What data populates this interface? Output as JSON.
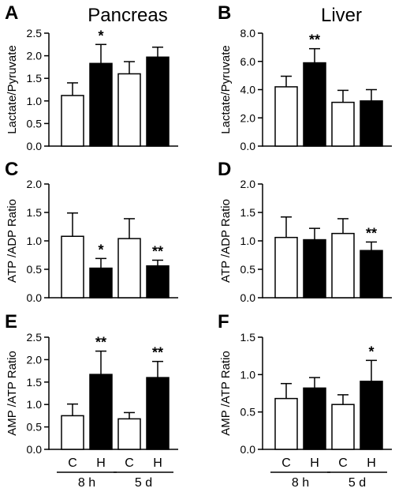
{
  "figure": {
    "column_titles": [
      "Pancreas",
      "Liver"
    ]
  },
  "chart_data": [
    {
      "panel": "A",
      "type": "bar",
      "ylabel": "Lactate/Pyruvate",
      "ylim": [
        0,
        2.5
      ],
      "yticks": [
        "0.0",
        "0.5",
        "1.0",
        "1.5",
        "2.0",
        "2.5"
      ],
      "categories": [
        "C 8 h",
        "H 8 h",
        "C 5 d",
        "H 5 d"
      ],
      "values": [
        1.12,
        1.83,
        1.6,
        1.97
      ],
      "errors": [
        0.28,
        0.42,
        0.27,
        0.22
      ],
      "fills": [
        "#ffffff",
        "#000000",
        "#ffffff",
        "#000000"
      ],
      "annotations": [
        "",
        "*",
        "",
        ""
      ]
    },
    {
      "panel": "B",
      "type": "bar",
      "ylabel": "Lactate/Pyruvate",
      "ylim": [
        0,
        8
      ],
      "yticks": [
        "0.0",
        "2.0",
        "4.0",
        "6.0",
        "8.0"
      ],
      "categories": [
        "C 8 h",
        "H 8 h",
        "C 5 d",
        "H 5 d"
      ],
      "values": [
        4.2,
        5.9,
        3.1,
        3.2
      ],
      "errors": [
        0.75,
        1.0,
        0.85,
        0.8
      ],
      "fills": [
        "#ffffff",
        "#000000",
        "#ffffff",
        "#000000"
      ],
      "annotations": [
        "",
        "**",
        "",
        ""
      ]
    },
    {
      "panel": "C",
      "type": "bar",
      "ylabel": "ATP /ADP Ratio",
      "ylim": [
        0,
        2
      ],
      "yticks": [
        "0.0",
        "0.5",
        "1.0",
        "1.5",
        "2.0"
      ],
      "categories": [
        "C 8 h",
        "H 8 h",
        "C 5 d",
        "H 5 d"
      ],
      "values": [
        1.08,
        0.52,
        1.04,
        0.56
      ],
      "errors": [
        0.41,
        0.17,
        0.35,
        0.1
      ],
      "fills": [
        "#ffffff",
        "#000000",
        "#ffffff",
        "#000000"
      ],
      "annotations": [
        "",
        "*",
        "",
        "**"
      ]
    },
    {
      "panel": "D",
      "type": "bar",
      "ylabel": "ATP /ADP Ratio",
      "ylim": [
        0,
        2
      ],
      "yticks": [
        "0.0",
        "0.5",
        "1.0",
        "1.5",
        "2.0"
      ],
      "categories": [
        "C 8 h",
        "H 8 h",
        "C 5 d",
        "H 5 d"
      ],
      "values": [
        1.06,
        1.02,
        1.13,
        0.83
      ],
      "errors": [
        0.36,
        0.2,
        0.26,
        0.15
      ],
      "fills": [
        "#ffffff",
        "#000000",
        "#ffffff",
        "#000000"
      ],
      "annotations": [
        "",
        "",
        "",
        "**"
      ]
    },
    {
      "panel": "E",
      "type": "bar",
      "ylabel": "AMP /ATP Ratio",
      "ylim": [
        0,
        2.5
      ],
      "yticks": [
        "0.0",
        "0.5",
        "1.0",
        "1.5",
        "2.0",
        "2.5"
      ],
      "categories": [
        "C 8 h",
        "H 8 h",
        "C 5 d",
        "H 5 d"
      ],
      "values": [
        0.75,
        1.67,
        0.68,
        1.6
      ],
      "errors": [
        0.26,
        0.52,
        0.14,
        0.36
      ],
      "fills": [
        "#ffffff",
        "#000000",
        "#ffffff",
        "#000000"
      ],
      "annotations": [
        "",
        "**",
        "",
        "**"
      ]
    },
    {
      "panel": "F",
      "type": "bar",
      "ylabel": "AMP /ATP Ratio",
      "ylim": [
        0,
        1.5
      ],
      "yticks": [
        "0.0",
        "0.5",
        "1.0",
        "1.5"
      ],
      "categories": [
        "C 8 h",
        "H 8 h",
        "C 5 d",
        "H 5 d"
      ],
      "values": [
        0.68,
        0.82,
        0.6,
        0.91
      ],
      "errors": [
        0.2,
        0.14,
        0.13,
        0.28
      ],
      "fills": [
        "#ffffff",
        "#000000",
        "#ffffff",
        "#000000"
      ],
      "annotations": [
        "",
        "",
        "",
        "*"
      ]
    }
  ],
  "x_axis": {
    "bar_labels": [
      "C",
      "H",
      "C",
      "H"
    ],
    "group_labels": [
      "8 h",
      "5 d"
    ]
  }
}
